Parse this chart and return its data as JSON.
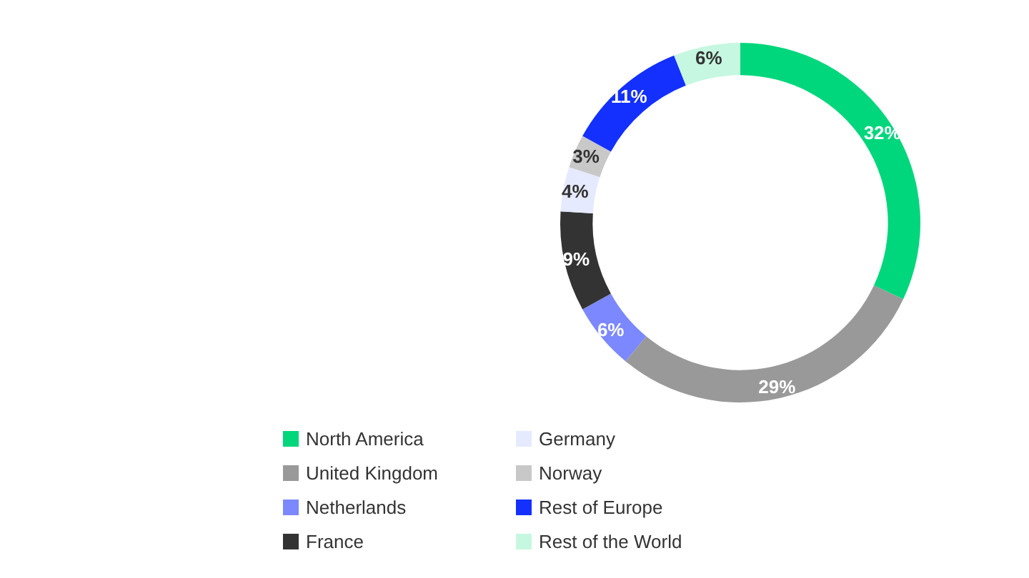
{
  "chart_data": {
    "type": "donut",
    "categories": [
      "North America",
      "United Kingdom",
      "Netherlands",
      "France",
      "Germany",
      "Norway",
      "Rest of Europe",
      "Rest of the World"
    ],
    "values": [
      32,
      29,
      6,
      9,
      4,
      3,
      11,
      6
    ],
    "value_labels": [
      "32%",
      "29%",
      "6%",
      "9%",
      "4%",
      "3%",
      "11%",
      "6%"
    ],
    "colors": [
      "#00d67c",
      "#999999",
      "#7b88ff",
      "#333333",
      "#e6eaff",
      "#c8c8c8",
      "#1330ff",
      "#c6f7e0"
    ],
    "legend": "bottom"
  }
}
